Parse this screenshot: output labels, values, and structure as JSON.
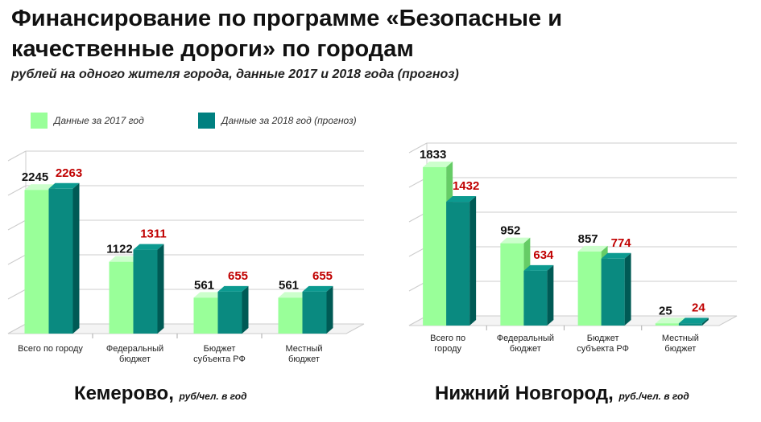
{
  "header": {
    "title_line1": "Финансирование по программе  «Безопасные и",
    "title_line2": "качественные дороги»  по городам",
    "subtitle": "рублей на одного жителя города, данные 2017 и 2018 года (прогноз)"
  },
  "legend": [
    {
      "label": "Данные за 2017 год",
      "color": "#99ff99"
    },
    {
      "label": "Данные за 2018 год (прогноз)",
      "color": "#008080"
    }
  ],
  "colors": {
    "series2017_front": "#99ff99",
    "series2017_side": "#66cc66",
    "series2018_front": "#0a8a80",
    "series2018_side": "#005a55",
    "value2017": "#111111",
    "value2018": "#c00000",
    "grid": "#cccccc"
  },
  "chart_data": [
    {
      "type": "bar",
      "city": "Кемерово,",
      "unit": "руб/чел. в год",
      "categories": [
        [
          "Всего по городу"
        ],
        [
          "Федеральный",
          "бюджет"
        ],
        [
          "Бюджет",
          "субъекта РФ"
        ],
        [
          "Местный",
          "бюджет"
        ]
      ],
      "series": [
        {
          "name": "Данные за 2017 год",
          "values": [
            2245,
            1122,
            561,
            561
          ]
        },
        {
          "name": "Данные за 2018 год (прогноз)",
          "values": [
            2263,
            1311,
            655,
            655
          ]
        }
      ],
      "ylim": [
        0,
        2700
      ]
    },
    {
      "type": "bar",
      "city": "Нижний Новгород,",
      "unit": "руб./чел. в год",
      "categories": [
        [
          "Всего по",
          "городу"
        ],
        [
          "Федеральный",
          "бюджет"
        ],
        [
          "Бюджет",
          "субъекта РФ"
        ],
        [
          "Местный",
          "бюджет"
        ]
      ],
      "series": [
        {
          "name": "Данные за 2017 год",
          "values": [
            1833,
            952,
            857,
            25
          ]
        },
        {
          "name": "Данные за 2018 год (прогноз)",
          "values": [
            1432,
            634,
            774,
            24
          ]
        }
      ],
      "ylim": [
        0,
        2000
      ]
    }
  ]
}
